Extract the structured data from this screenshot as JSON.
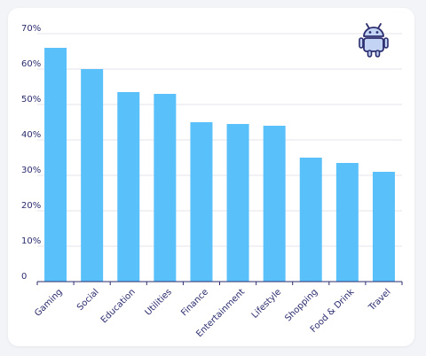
{
  "icon": {
    "name": "android-icon"
  },
  "colors": {
    "bar": "#5ac0f9",
    "text": "#2b2d6e",
    "icon_fill": "#c2d3f4",
    "icon_stroke": "#2b2d6e"
  },
  "chart_data": {
    "type": "bar",
    "title": "",
    "xlabel": "",
    "ylabel": "",
    "ylim": [
      0,
      70
    ],
    "y_ticks": [
      0,
      10,
      20,
      30,
      40,
      50,
      60,
      70
    ],
    "y_tick_labels": [
      "0",
      "10%",
      "20%",
      "30%",
      "40%",
      "50%",
      "60%",
      "70%"
    ],
    "grid": true,
    "categories": [
      "Gaming",
      "Social",
      "Education",
      "Utilities",
      "Finance",
      "Entertainment",
      "Lifestyle",
      "Shopping",
      "Food & Drink",
      "Travel"
    ],
    "values": [
      66,
      60,
      53.5,
      53,
      45,
      44.5,
      44,
      35,
      33.5,
      31
    ]
  }
}
